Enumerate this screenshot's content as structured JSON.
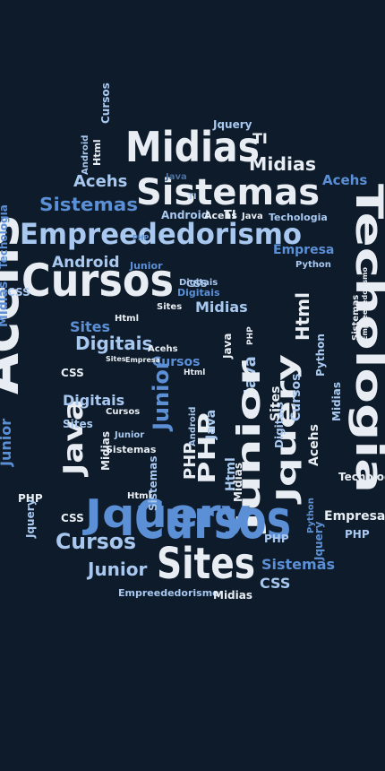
{
  "palette": {
    "background": "#0d1b2a",
    "white": "#e8edf3",
    "light_blue": "#a8c8f0",
    "mid_blue": "#5b8fd6",
    "steel": "#4a6f9e",
    "dark_blue": "#2f4f78"
  },
  "words": [
    "Midias",
    "TI",
    "Jquery",
    "Sistemas",
    "Acehs",
    "Empreededorismo",
    "Techologia",
    "Cursos",
    "Android",
    "Junior",
    "Digitais",
    "Sites",
    "Java",
    "PHP",
    "Html",
    "Python",
    "Empresa",
    "CSS"
  ]
}
